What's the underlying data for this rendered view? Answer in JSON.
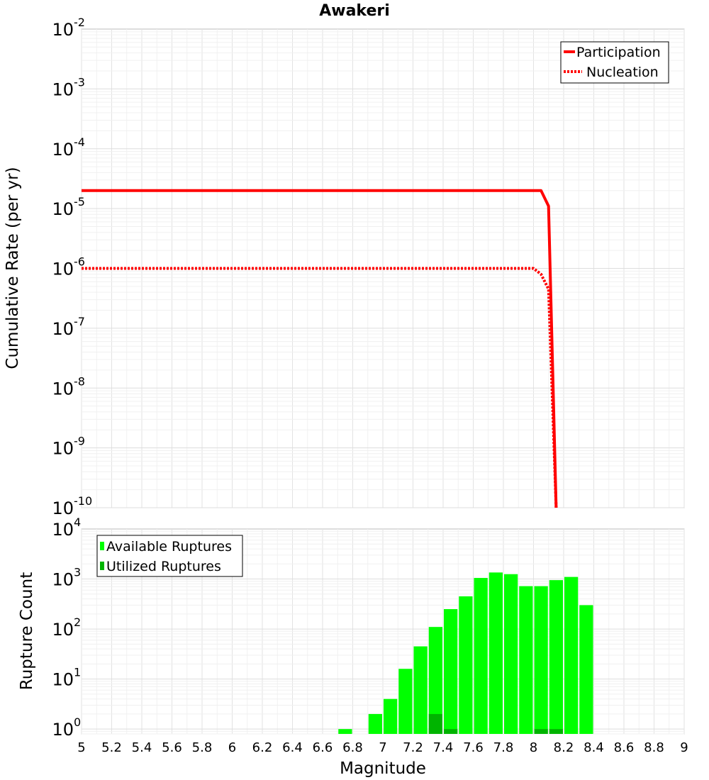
{
  "chart_data": [
    {
      "type": "line",
      "title": "Awakeri",
      "xlabel": "",
      "ylabel": "Cumulative Rate (per yr)",
      "xscale": "linear",
      "yscale": "log",
      "xlim": [
        5,
        9
      ],
      "ylim": [
        1e-10,
        0.01
      ],
      "y_ticks": [
        {
          "base": "10",
          "exp": "-10"
        },
        {
          "base": "10",
          "exp": "-9"
        },
        {
          "base": "10",
          "exp": "-8"
        },
        {
          "base": "10",
          "exp": "-7"
        },
        {
          "base": "10",
          "exp": "-6"
        },
        {
          "base": "10",
          "exp": "-5"
        },
        {
          "base": "10",
          "exp": "-4"
        },
        {
          "base": "10",
          "exp": "-3"
        },
        {
          "base": "10",
          "exp": "-2"
        }
      ],
      "legend": {
        "position": "top-right",
        "entries": [
          "Participation",
          "Nucleation"
        ]
      },
      "series": [
        {
          "name": "Participation",
          "color": "#ff0000",
          "style": "solid",
          "x": [
            5.0,
            5.5,
            6.0,
            6.5,
            7.0,
            7.5,
            7.95,
            8.05,
            8.1,
            8.15
          ],
          "y": [
            2e-05,
            2e-05,
            2e-05,
            2e-05,
            2e-05,
            2e-05,
            2e-05,
            2e-05,
            1.1e-05,
            1e-10
          ]
        },
        {
          "name": "Nucleation",
          "color": "#ff0000",
          "style": "dotted",
          "x": [
            5.0,
            5.5,
            6.0,
            6.5,
            7.0,
            7.5,
            7.95,
            8.0,
            8.05,
            8.1,
            8.15
          ],
          "y": [
            1e-06,
            1e-06,
            1e-06,
            1e-06,
            1e-06,
            1e-06,
            1e-06,
            1e-06,
            8e-07,
            4.5e-07,
            1e-10
          ]
        }
      ]
    },
    {
      "type": "bar",
      "title": "",
      "xlabel": "Magnitude",
      "ylabel": "Rupture Count",
      "xscale": "linear",
      "yscale": "log",
      "xlim": [
        5,
        9
      ],
      "ylim": [
        0.8,
        10000
      ],
      "x_ticks": [
        "5",
        "5.2",
        "5.4",
        "5.6",
        "5.8",
        "6",
        "6.2",
        "6.4",
        "6.6",
        "6.8",
        "7",
        "7.2",
        "7.4",
        "7.6",
        "7.8",
        "8",
        "8.2",
        "8.4",
        "8.6",
        "8.8",
        "9"
      ],
      "y_ticks": [
        {
          "base": "10",
          "exp": "0"
        },
        {
          "base": "10",
          "exp": "1"
        },
        {
          "base": "10",
          "exp": "2"
        },
        {
          "base": "10",
          "exp": "3"
        },
        {
          "base": "10",
          "exp": "4"
        }
      ],
      "bin_width": 0.1,
      "legend": {
        "position": "top-left",
        "entries": [
          "Available Ruptures",
          "Utilized Ruptures"
        ]
      },
      "series": [
        {
          "name": "Available Ruptures",
          "color": "#00ff00",
          "x": [
            6.7,
            6.9,
            7.0,
            7.1,
            7.2,
            7.3,
            7.4,
            7.5,
            7.6,
            7.7,
            7.8,
            7.9,
            8.0,
            8.1,
            8.2,
            8.3
          ],
          "values": [
            1,
            2,
            4,
            16,
            45,
            110,
            250,
            450,
            1050,
            1350,
            1250,
            720,
            720,
            950,
            1100,
            300
          ]
        },
        {
          "name": "Utilized Ruptures",
          "color": "#00b400",
          "x": [
            7.3,
            7.4,
            8.0,
            8.1
          ],
          "values": [
            2,
            1,
            1,
            1
          ]
        }
      ]
    }
  ]
}
